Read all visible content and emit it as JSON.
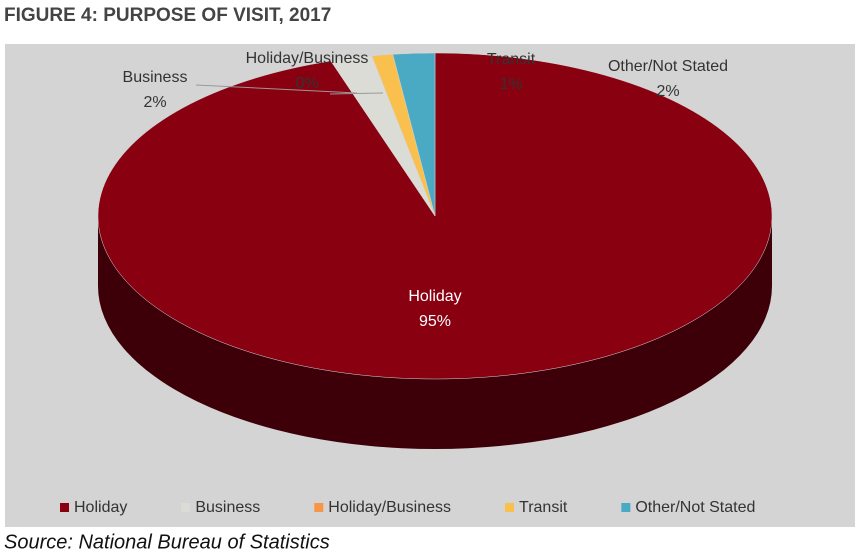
{
  "chart_data": {
    "type": "pie3d",
    "title": "FIGURE 4: PURPOSE OF VISIT, 2017",
    "categories": [
      "Holiday",
      "Business",
      "Holiday/Business",
      "Transit",
      "Other/Not Stated"
    ],
    "values": [
      95,
      2,
      0,
      1,
      2
    ],
    "value_labels": [
      "95%",
      "2%",
      "0%",
      "1%",
      "2%"
    ],
    "colors": [
      "#890011",
      "#dcdcd6",
      "#f79646",
      "#f9c04d",
      "#4aaac4"
    ],
    "legend": "bottom",
    "source": "Source: National Bureau of Statistics"
  }
}
